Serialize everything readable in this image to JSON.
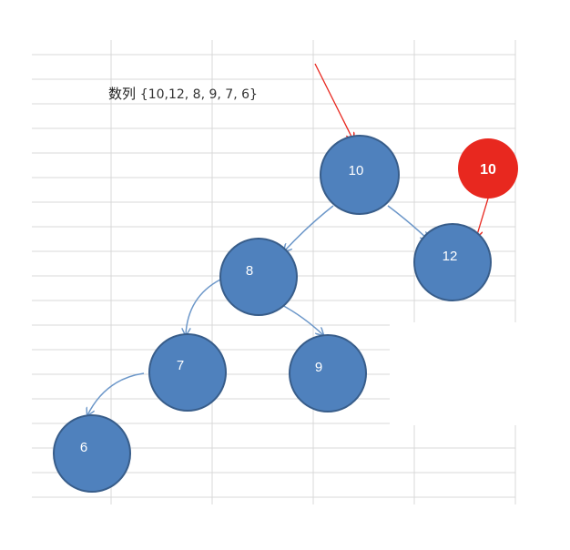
{
  "caption": {
    "prefix": "数列",
    "sequence": "{10,12, 8, 9, 7, 6}"
  },
  "tree": {
    "nodes": [
      {
        "id": "n10",
        "label": "10"
      },
      {
        "id": "n12",
        "label": "12"
      },
      {
        "id": "n8",
        "label": "8"
      },
      {
        "id": "n7",
        "label": "7"
      },
      {
        "id": "n9",
        "label": "9"
      },
      {
        "id": "n6",
        "label": "6"
      }
    ],
    "edges": [
      {
        "from": "10",
        "to": "8"
      },
      {
        "from": "10",
        "to": "12"
      },
      {
        "from": "8",
        "to": "7"
      },
      {
        "from": "8",
        "to": "9"
      },
      {
        "from": "7",
        "to": "6"
      }
    ]
  },
  "badge": {
    "label": "10"
  },
  "colors": {
    "node_fill": "#4F81BD",
    "node_stroke": "#385D8A",
    "edge": "#6C97C9",
    "pointer": "#E8281F",
    "badge_fill": "#E8281F",
    "grid": "#D9D9D9"
  }
}
